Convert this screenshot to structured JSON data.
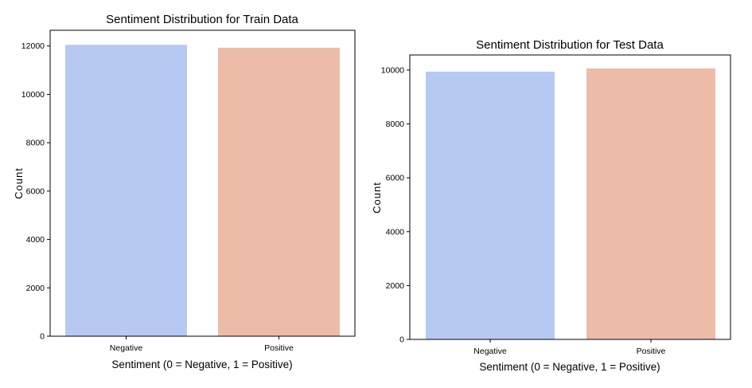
{
  "chart_data": [
    {
      "type": "bar",
      "title": "Sentiment Distribution for Train Data",
      "xlabel": "Sentiment (0 = Negative, 1 = Positive)",
      "ylabel": "Count",
      "categories": [
        "Negative",
        "Positive"
      ],
      "values": [
        12050,
        11930
      ],
      "colors": [
        "#b5c9f2",
        "#ecbca8"
      ],
      "yticks": [
        0,
        2000,
        4000,
        6000,
        8000,
        10000,
        12000
      ],
      "ylim": [
        0,
        12650
      ],
      "grid": false
    },
    {
      "type": "bar",
      "title": "Sentiment Distribution for Test Data",
      "xlabel": "Sentiment (0 = Negative, 1 = Positive)",
      "ylabel": "Count",
      "categories": [
        "Negative",
        "Positive"
      ],
      "values": [
        9940,
        10060
      ],
      "colors": [
        "#b5c9f2",
        "#ecbca8"
      ],
      "yticks": [
        0,
        2000,
        4000,
        6000,
        8000,
        10000
      ],
      "ylim": [
        0,
        10560
      ],
      "grid": false
    }
  ]
}
